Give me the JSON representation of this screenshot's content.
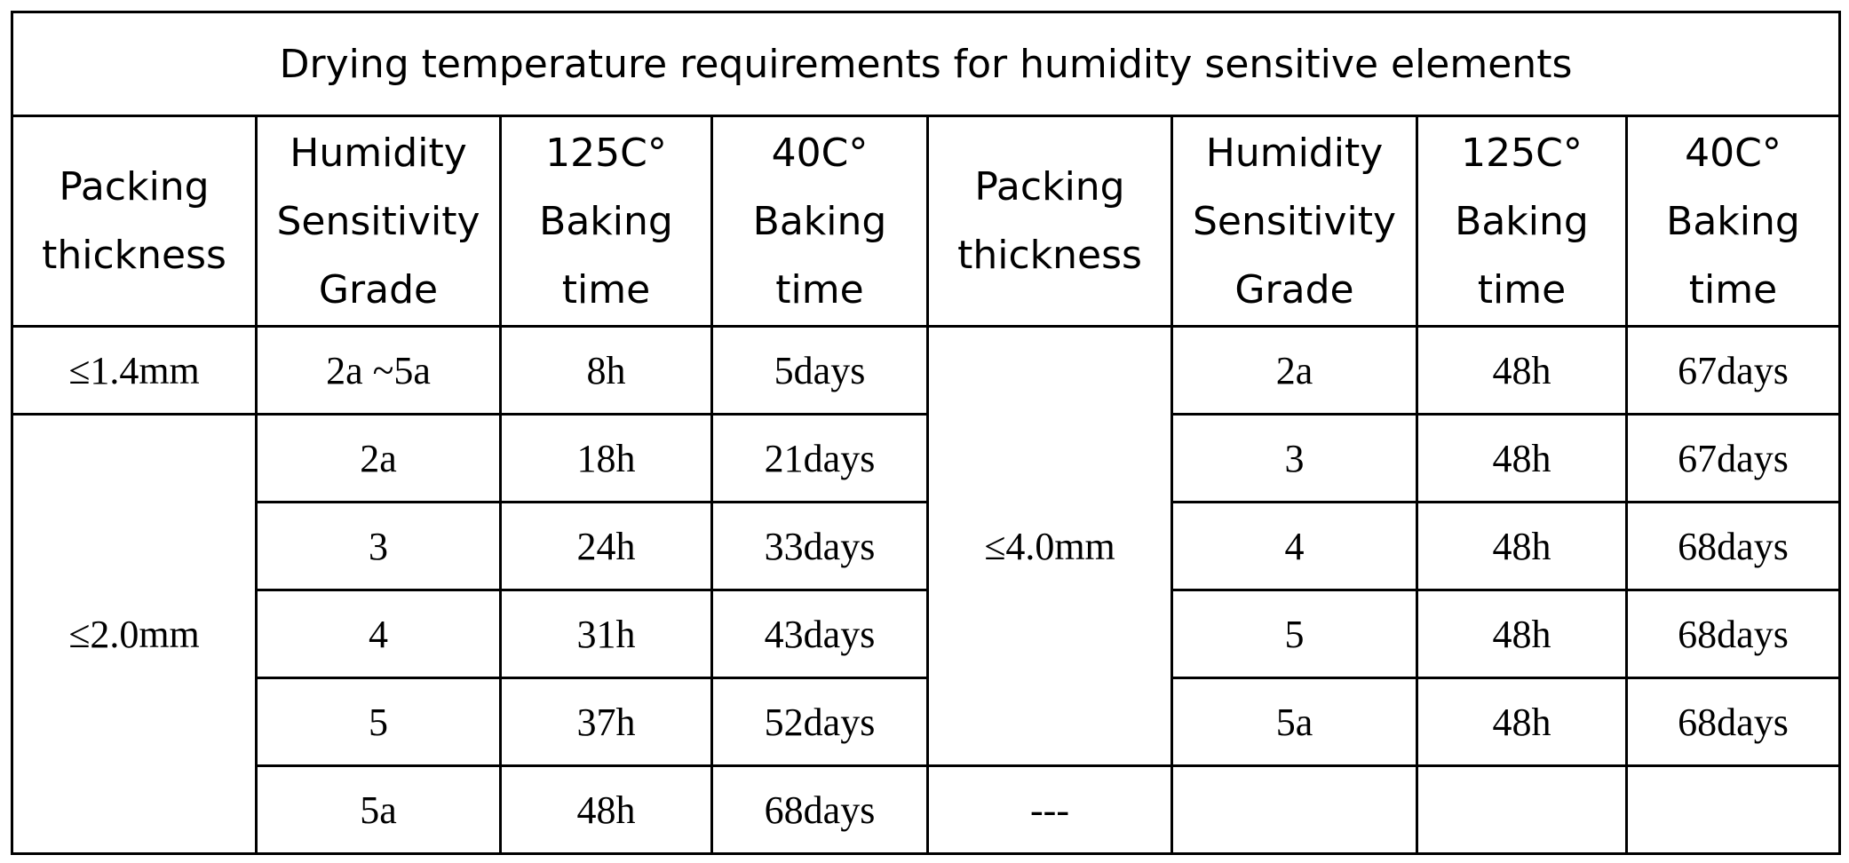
{
  "title": "Drying temperature requirements for humidity sensitive elements",
  "headers": {
    "packing": [
      "Packing",
      "thickness"
    ],
    "grade": [
      "Humidity",
      "Sensitivity",
      "Grade"
    ],
    "t125": [
      "125C°",
      "Baking",
      "time"
    ],
    "t40": [
      "40C°",
      "Baking",
      "time"
    ]
  },
  "left": {
    "group1": {
      "thickness": "≤1.4mm",
      "rows": [
        {
          "grade": "2a ~5a",
          "t125": "8h",
          "t40": "5days"
        }
      ]
    },
    "group2": {
      "thickness": "≤2.0mm",
      "rows": [
        {
          "grade": "2a",
          "t125": "18h",
          "t40": "21days"
        },
        {
          "grade": "3",
          "t125": "24h",
          "t40": "33days"
        },
        {
          "grade": "4",
          "t125": "31h",
          "t40": "43days"
        },
        {
          "grade": "5",
          "t125": "37h",
          "t40": "52days"
        },
        {
          "grade": "5a",
          "t125": "48h",
          "t40": "68days"
        }
      ]
    }
  },
  "right": {
    "thickness": "≤4.0mm",
    "rows": [
      {
        "grade": "2a",
        "t125": "48h",
        "t40": "67days"
      },
      {
        "grade": "3",
        "t125": "48h",
        "t40": "67days"
      },
      {
        "grade": "4",
        "t125": "48h",
        "t40": "68days"
      },
      {
        "grade": "5",
        "t125": "48h",
        "t40": "68days"
      },
      {
        "grade": "5a",
        "t125": "48h",
        "t40": "68days"
      }
    ],
    "empty_thickness": "---"
  }
}
